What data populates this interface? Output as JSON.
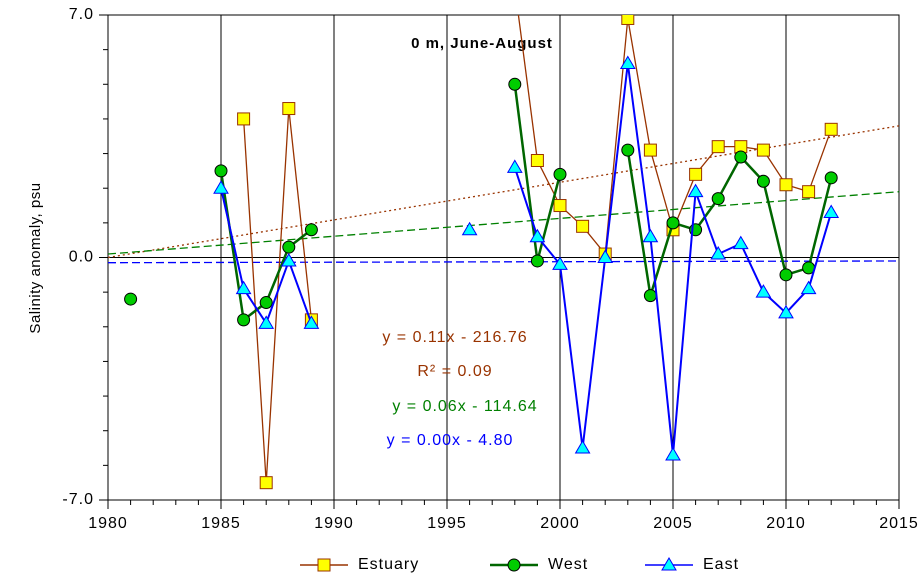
{
  "chart_data": {
    "type": "line",
    "title": "0 m, June-August",
    "y_label": "Salinity anomaly, psu",
    "x": [
      1981,
      1982,
      1983,
      1984,
      1985,
      1986,
      1987,
      1988,
      1989,
      1990,
      1991,
      1992,
      1993,
      1994,
      1995,
      1996,
      1997,
      1998,
      1999,
      2000,
      2001,
      2002,
      2003,
      2004,
      2005,
      2006,
      2007,
      2008,
      2009,
      2010,
      2011,
      2012
    ],
    "series": [
      {
        "name": "Estuary",
        "color": "#993300",
        "marker": "square",
        "marker_fill": "#ffff00",
        "values": [
          null,
          null,
          null,
          null,
          null,
          4.0,
          -6.5,
          4.3,
          -1.8,
          null,
          null,
          null,
          null,
          null,
          null,
          null,
          null,
          7.8,
          2.8,
          1.5,
          0.9,
          0.1,
          6.9,
          3.1,
          0.8,
          2.4,
          3.2,
          3.2,
          3.1,
          2.1,
          1.9,
          3.7
        ]
      },
      {
        "name": "West",
        "color": "#006600",
        "marker": "circle",
        "marker_fill": "#00cc00",
        "values": [
          -1.2,
          null,
          null,
          null,
          2.5,
          -1.8,
          -1.3,
          0.3,
          0.8,
          null,
          null,
          null,
          null,
          null,
          null,
          null,
          null,
          5.0,
          -0.1,
          2.4,
          null,
          null,
          3.1,
          -1.1,
          1.0,
          0.8,
          1.7,
          2.9,
          2.2,
          -0.5,
          -0.3,
          2.3
        ]
      },
      {
        "name": "East",
        "color": "#0000ff",
        "marker": "triangle",
        "marker_fill": "#00ffff",
        "values": [
          null,
          null,
          null,
          null,
          2.0,
          -0.9,
          -1.9,
          -0.1,
          -1.9,
          null,
          null,
          null,
          null,
          null,
          null,
          0.8,
          null,
          2.6,
          0.6,
          -0.2,
          -5.5,
          0.0,
          5.6,
          0.6,
          -5.7,
          1.9,
          0.1,
          0.4,
          -1.0,
          -1.6,
          -0.9,
          1.3
        ]
      }
    ],
    "trendlines": [
      {
        "equation": "y = 0.11x - 216.76",
        "r2": "R² = 0.09",
        "color": "#993300",
        "dash": "2 3",
        "values": [
          0.0,
          3.8
        ]
      },
      {
        "equation": "y = 0.06x - 114.64",
        "color": "#008000",
        "dash": "8 4",
        "values": [
          0.1,
          1.9
        ]
      },
      {
        "equation": "y = 0.00x - 4.80",
        "color": "#0000ff",
        "dash": "8 4",
        "values": [
          -0.15,
          -0.1
        ]
      }
    ],
    "xlim": [
      1980,
      2015
    ],
    "xticks": [
      1980,
      1985,
      1990,
      1995,
      2000,
      2005,
      2010,
      2015
    ],
    "ylim": [
      -7,
      7
    ],
    "yticks": [
      {
        "value": -7,
        "label": "-7.0"
      },
      {
        "value": 0,
        "label": "0.0"
      },
      {
        "value": 7,
        "label": "7.0"
      }
    ],
    "grid": true,
    "legend": "bottom"
  }
}
